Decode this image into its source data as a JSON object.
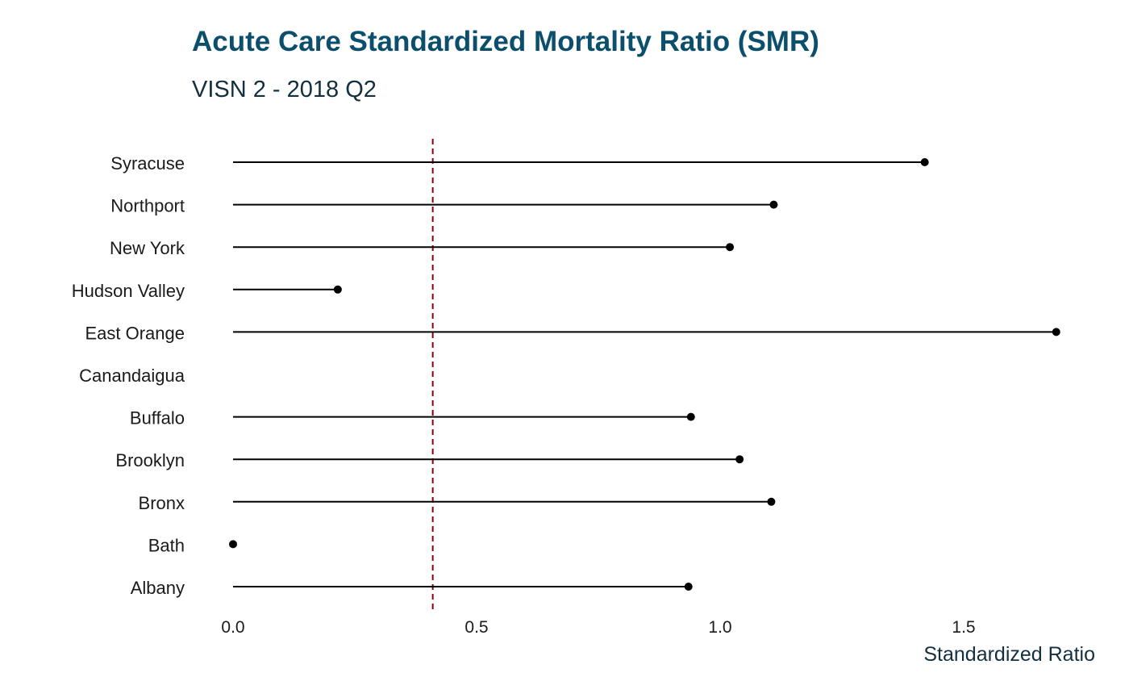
{
  "chart_data": {
    "type": "lollipop",
    "title": "Acute Care Standardized Mortality Ratio (SMR)",
    "subtitle": "VISN 2 - 2018 Q2",
    "xlabel": "Standardized Ratio",
    "ylabel": "",
    "xlim": [
      0,
      1.7
    ],
    "x_ticks": [
      "0.0",
      "0.5",
      "1.0",
      "1.5"
    ],
    "reference_line": 0.41,
    "grid": false,
    "categories": [
      "Syracuse",
      "Northport",
      "New York",
      "Hudson Valley",
      "East Orange",
      "Canandaigua",
      "Buffalo",
      "Brooklyn",
      "Bronx",
      "Bath",
      "Albany"
    ],
    "values": [
      1.42,
      1.11,
      1.02,
      0.215,
      1.69,
      null,
      0.94,
      1.04,
      1.105,
      0.0,
      0.935
    ],
    "colors": {
      "title": "#0b4f6c",
      "subtitle": "#12303f",
      "reference_line": "#8b0000",
      "marks": "#000000"
    }
  }
}
